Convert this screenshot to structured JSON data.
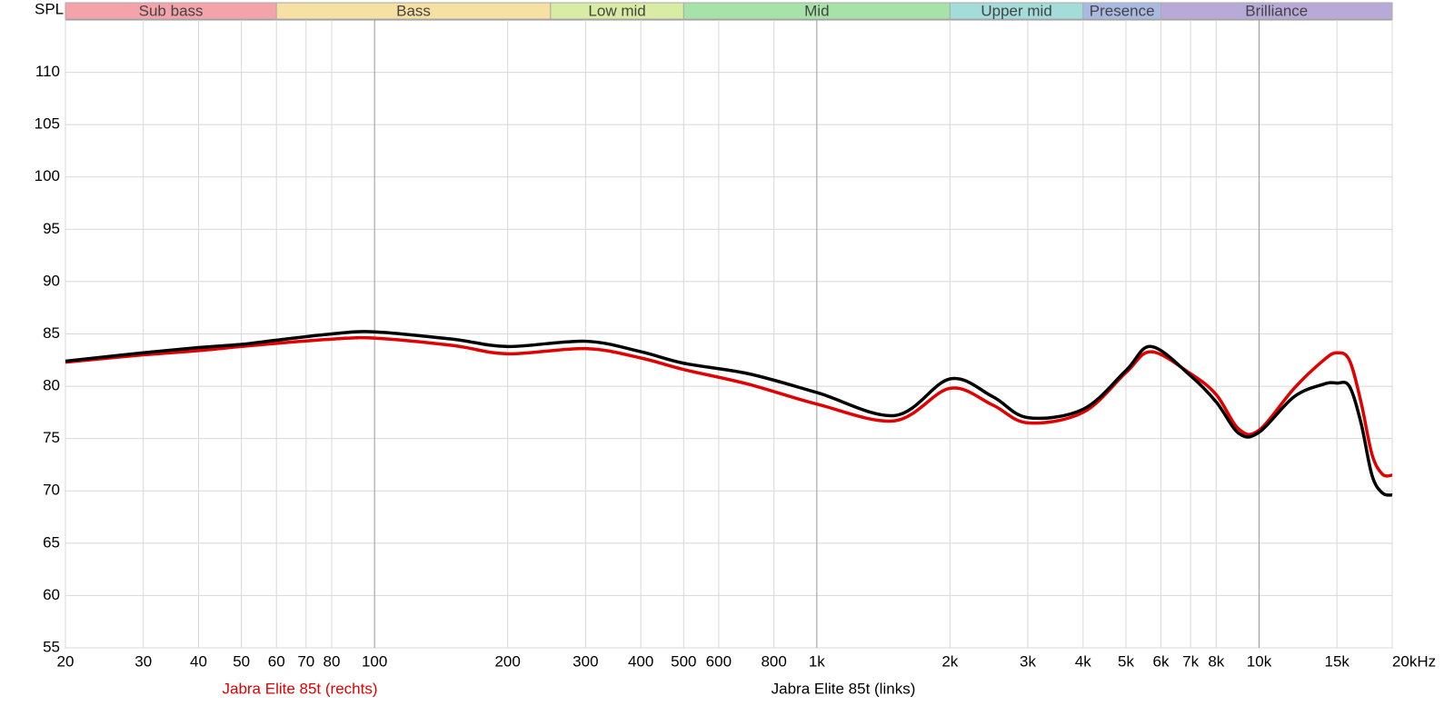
{
  "chart_data": {
    "type": "line",
    "ylabel": "SPL",
    "log_x": true,
    "grid": true,
    "xlim": [
      20,
      20000
    ],
    "ylim": [
      55,
      115
    ],
    "yticks": [
      55,
      60,
      65,
      70,
      75,
      80,
      85,
      90,
      95,
      100,
      105,
      110
    ],
    "xticks": [
      20,
      30,
      40,
      50,
      60,
      70,
      80,
      100,
      200,
      300,
      400,
      500,
      600,
      800,
      {
        "value": 1000,
        "label": "1k"
      },
      {
        "value": 2000,
        "label": "2k"
      },
      {
        "value": 3000,
        "label": "3k"
      },
      {
        "value": 4000,
        "label": "4k"
      },
      {
        "value": 5000,
        "label": "5k"
      },
      {
        "value": 6000,
        "label": "6k"
      },
      {
        "value": 7000,
        "label": "7k"
      },
      {
        "value": 8000,
        "label": "8k"
      },
      {
        "value": 10000,
        "label": "10k"
      },
      {
        "value": 15000,
        "label": "15k"
      },
      {
        "value": 20000,
        "label": "20kHz"
      }
    ],
    "bands": [
      {
        "name": "Sub bass",
        "from": 20,
        "to": 60,
        "color": "#f5a3aa"
      },
      {
        "name": "Bass",
        "from": 60,
        "to": 250,
        "color": "#f7e0a3"
      },
      {
        "name": "Low mid",
        "from": 250,
        "to": 500,
        "color": "#d9eca3"
      },
      {
        "name": "Mid",
        "from": 500,
        "to": 2000,
        "color": "#a6e3a8"
      },
      {
        "name": "Upper mid",
        "from": 2000,
        "to": 4000,
        "color": "#a3dcd8"
      },
      {
        "name": "Presence",
        "from": 4000,
        "to": 6000,
        "color": "#a9b9e1"
      },
      {
        "name": "Brilliance",
        "from": 6000,
        "to": 20000,
        "color": "#b9a9d9"
      }
    ],
    "x": [
      20,
      30,
      40,
      50,
      60,
      80,
      100,
      150,
      200,
      300,
      400,
      500,
      700,
      1000,
      1500,
      2000,
      2500,
      3000,
      4000,
      5000,
      5700,
      7000,
      8000,
      9000,
      10000,
      12000,
      14000,
      15000,
      16000,
      17000,
      18000,
      19000,
      20000
    ],
    "series": [
      {
        "name": "Jabra Elite 85t (rechts)",
        "color": "#e00000",
        "values": [
          82.3,
          83.0,
          83.4,
          83.8,
          84.1,
          84.5,
          84.6,
          83.9,
          83.1,
          83.6,
          82.7,
          81.6,
          80.2,
          78.3,
          76.7,
          79.8,
          78.2,
          76.5,
          77.5,
          81.3,
          83.3,
          81.2,
          79.2,
          75.9,
          75.8,
          79.8,
          82.5,
          83.2,
          82.5,
          78.5,
          73.5,
          71.6,
          71.5
        ]
      },
      {
        "name": "Jabra Elite 85t (links)",
        "color": "#000000",
        "values": [
          82.4,
          83.2,
          83.7,
          84.0,
          84.4,
          85.0,
          85.2,
          84.5,
          83.8,
          84.3,
          83.3,
          82.2,
          81.2,
          79.4,
          77.2,
          80.7,
          79.0,
          77.0,
          77.8,
          81.5,
          83.8,
          81.0,
          78.5,
          75.5,
          75.6,
          79.0,
          80.2,
          80.3,
          80.0,
          76.5,
          71.5,
          69.8,
          69.6
        ]
      }
    ]
  }
}
